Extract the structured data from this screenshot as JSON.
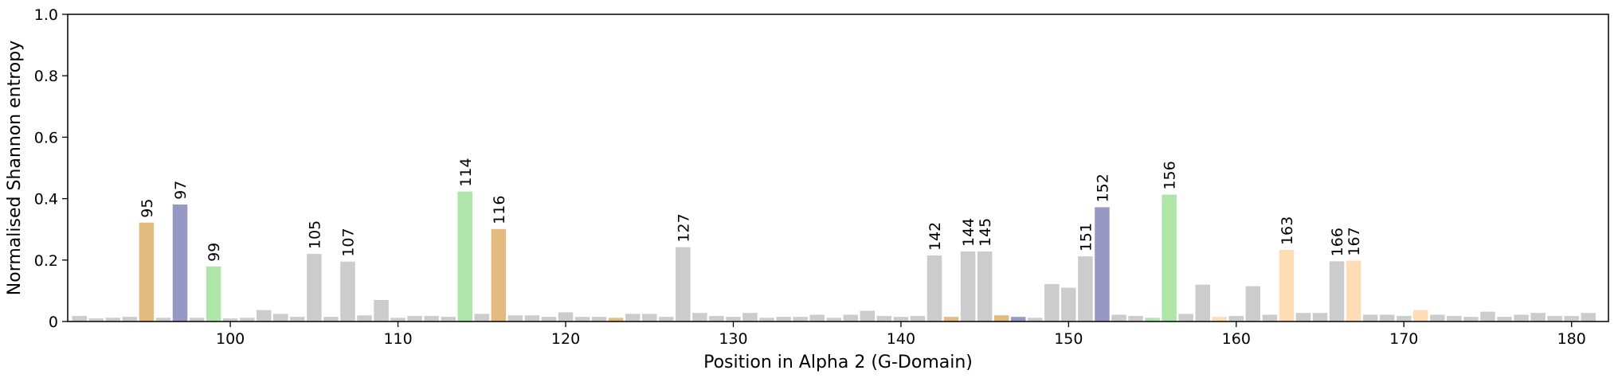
{
  "chart_data": {
    "type": "bar",
    "title": "",
    "xlabel": "Position in Alpha 2 (G-Domain)",
    "ylabel": "Normalised Shannon entropy",
    "xlim": [
      90.3,
      182.2
    ],
    "ylim": [
      0,
      1.0
    ],
    "xticks": [
      100,
      110,
      120,
      130,
      140,
      150,
      160,
      170,
      180
    ],
    "yticks": [
      0,
      0.2,
      0.4,
      0.6,
      0.8,
      1.0
    ],
    "ytick_labels": [
      "0",
      "0.2",
      "0.4",
      "0.6",
      "0.8",
      "1.0"
    ],
    "grid": false,
    "colors": {
      "gray": "#cccccc",
      "orange": "#e4bb7f",
      "purple": "#9898c4",
      "green": "#b0e5a9",
      "light_orange": "#fddcb6"
    },
    "bars": [
      {
        "x": 91,
        "value": 0.018,
        "color": "gray"
      },
      {
        "x": 92,
        "value": 0.01,
        "color": "gray"
      },
      {
        "x": 93,
        "value": 0.012,
        "color": "gray"
      },
      {
        "x": 94,
        "value": 0.015,
        "color": "gray"
      },
      {
        "x": 95,
        "value": 0.322,
        "color": "orange",
        "label": "95"
      },
      {
        "x": 96,
        "value": 0.012,
        "color": "gray"
      },
      {
        "x": 97,
        "value": 0.381,
        "color": "purple",
        "label": "97"
      },
      {
        "x": 98,
        "value": 0.012,
        "color": "gray"
      },
      {
        "x": 99,
        "value": 0.179,
        "color": "green",
        "label": "99"
      },
      {
        "x": 100,
        "value": 0.01,
        "color": "gray"
      },
      {
        "x": 101,
        "value": 0.012,
        "color": "gray"
      },
      {
        "x": 102,
        "value": 0.037,
        "color": "gray"
      },
      {
        "x": 103,
        "value": 0.025,
        "color": "gray"
      },
      {
        "x": 104,
        "value": 0.015,
        "color": "gray"
      },
      {
        "x": 105,
        "value": 0.22,
        "color": "gray",
        "label": "105"
      },
      {
        "x": 106,
        "value": 0.015,
        "color": "gray"
      },
      {
        "x": 107,
        "value": 0.195,
        "color": "gray",
        "label": "107"
      },
      {
        "x": 108,
        "value": 0.02,
        "color": "gray"
      },
      {
        "x": 109,
        "value": 0.07,
        "color": "gray"
      },
      {
        "x": 110,
        "value": 0.012,
        "color": "gray"
      },
      {
        "x": 111,
        "value": 0.018,
        "color": "gray"
      },
      {
        "x": 112,
        "value": 0.018,
        "color": "gray"
      },
      {
        "x": 113,
        "value": 0.015,
        "color": "gray"
      },
      {
        "x": 114,
        "value": 0.423,
        "color": "green",
        "label": "114"
      },
      {
        "x": 115,
        "value": 0.025,
        "color": "gray"
      },
      {
        "x": 116,
        "value": 0.301,
        "color": "orange",
        "label": "116"
      },
      {
        "x": 117,
        "value": 0.02,
        "color": "gray"
      },
      {
        "x": 118,
        "value": 0.02,
        "color": "gray"
      },
      {
        "x": 119,
        "value": 0.015,
        "color": "gray"
      },
      {
        "x": 120,
        "value": 0.03,
        "color": "gray"
      },
      {
        "x": 121,
        "value": 0.015,
        "color": "gray"
      },
      {
        "x": 122,
        "value": 0.015,
        "color": "gray"
      },
      {
        "x": 123,
        "value": 0.012,
        "color": "orange"
      },
      {
        "x": 124,
        "value": 0.025,
        "color": "gray"
      },
      {
        "x": 125,
        "value": 0.025,
        "color": "gray"
      },
      {
        "x": 126,
        "value": 0.015,
        "color": "gray"
      },
      {
        "x": 127,
        "value": 0.242,
        "color": "gray",
        "label": "127"
      },
      {
        "x": 128,
        "value": 0.028,
        "color": "gray"
      },
      {
        "x": 129,
        "value": 0.018,
        "color": "gray"
      },
      {
        "x": 130,
        "value": 0.015,
        "color": "gray"
      },
      {
        "x": 131,
        "value": 0.028,
        "color": "gray"
      },
      {
        "x": 132,
        "value": 0.012,
        "color": "gray"
      },
      {
        "x": 133,
        "value": 0.015,
        "color": "gray"
      },
      {
        "x": 134,
        "value": 0.015,
        "color": "gray"
      },
      {
        "x": 135,
        "value": 0.022,
        "color": "gray"
      },
      {
        "x": 136,
        "value": 0.012,
        "color": "gray"
      },
      {
        "x": 137,
        "value": 0.022,
        "color": "gray"
      },
      {
        "x": 138,
        "value": 0.035,
        "color": "gray"
      },
      {
        "x": 139,
        "value": 0.018,
        "color": "gray"
      },
      {
        "x": 140,
        "value": 0.015,
        "color": "gray"
      },
      {
        "x": 141,
        "value": 0.018,
        "color": "gray"
      },
      {
        "x": 142,
        "value": 0.215,
        "color": "gray",
        "label": "142"
      },
      {
        "x": 143,
        "value": 0.015,
        "color": "orange"
      },
      {
        "x": 144,
        "value": 0.228,
        "color": "gray",
        "label": "144"
      },
      {
        "x": 145,
        "value": 0.228,
        "color": "gray",
        "label": "145"
      },
      {
        "x": 146,
        "value": 0.02,
        "color": "orange"
      },
      {
        "x": 147,
        "value": 0.015,
        "color": "purple"
      },
      {
        "x": 148,
        "value": 0.012,
        "color": "gray"
      },
      {
        "x": 149,
        "value": 0.122,
        "color": "gray"
      },
      {
        "x": 150,
        "value": 0.11,
        "color": "gray"
      },
      {
        "x": 151,
        "value": 0.212,
        "color": "gray",
        "label": "151"
      },
      {
        "x": 152,
        "value": 0.372,
        "color": "purple",
        "label": "152"
      },
      {
        "x": 153,
        "value": 0.022,
        "color": "gray"
      },
      {
        "x": 154,
        "value": 0.018,
        "color": "gray"
      },
      {
        "x": 155,
        "value": 0.012,
        "color": "green"
      },
      {
        "x": 156,
        "value": 0.413,
        "color": "green",
        "label": "156"
      },
      {
        "x": 157,
        "value": 0.025,
        "color": "gray"
      },
      {
        "x": 158,
        "value": 0.12,
        "color": "gray"
      },
      {
        "x": 159,
        "value": 0.015,
        "color": "light_orange"
      },
      {
        "x": 160,
        "value": 0.018,
        "color": "gray"
      },
      {
        "x": 161,
        "value": 0.115,
        "color": "gray"
      },
      {
        "x": 162,
        "value": 0.022,
        "color": "gray"
      },
      {
        "x": 163,
        "value": 0.233,
        "color": "light_orange",
        "label": "163"
      },
      {
        "x": 164,
        "value": 0.028,
        "color": "gray"
      },
      {
        "x": 165,
        "value": 0.028,
        "color": "gray"
      },
      {
        "x": 166,
        "value": 0.196,
        "color": "gray",
        "label": "166"
      },
      {
        "x": 167,
        "value": 0.198,
        "color": "light_orange",
        "label": "167"
      },
      {
        "x": 168,
        "value": 0.022,
        "color": "gray"
      },
      {
        "x": 169,
        "value": 0.022,
        "color": "gray"
      },
      {
        "x": 170,
        "value": 0.018,
        "color": "gray"
      },
      {
        "x": 171,
        "value": 0.037,
        "color": "light_orange"
      },
      {
        "x": 172,
        "value": 0.022,
        "color": "gray"
      },
      {
        "x": 173,
        "value": 0.018,
        "color": "gray"
      },
      {
        "x": 174,
        "value": 0.015,
        "color": "gray"
      },
      {
        "x": 175,
        "value": 0.032,
        "color": "gray"
      },
      {
        "x": 176,
        "value": 0.015,
        "color": "gray"
      },
      {
        "x": 177,
        "value": 0.022,
        "color": "gray"
      },
      {
        "x": 178,
        "value": 0.028,
        "color": "gray"
      },
      {
        "x": 179,
        "value": 0.018,
        "color": "gray"
      },
      {
        "x": 180,
        "value": 0.018,
        "color": "gray"
      },
      {
        "x": 181,
        "value": 0.028,
        "color": "gray"
      }
    ]
  }
}
